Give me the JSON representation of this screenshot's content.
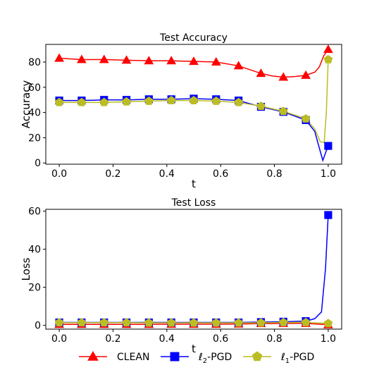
{
  "chart_data": [
    {
      "type": "line",
      "title": "Test Accuracy",
      "xlabel": "t",
      "ylabel": "Accuracy",
      "xlim": [
        -0.05,
        1.05
      ],
      "ylim": [
        -1,
        94
      ],
      "xticks": [
        0.0,
        0.2,
        0.4,
        0.6,
        0.8,
        1.0
      ],
      "xtick_labels": [
        "0.0",
        "0.2",
        "0.4",
        "0.6",
        "0.8",
        "1.0"
      ],
      "yticks": [
        0,
        20,
        40,
        60,
        80
      ],
      "ytick_labels": [
        "0",
        "20",
        "40",
        "60",
        "80"
      ],
      "grid": false,
      "series": [
        {
          "name": "CLEAN",
          "color": "#ff0000",
          "marker": "triangle",
          "line_x": [
            0,
            0.0833,
            0.1667,
            0.25,
            0.3333,
            0.4167,
            0.5,
            0.5833,
            0.6667,
            0.75,
            0.7917,
            0.8333,
            0.875,
            0.9167,
            0.95,
            0.9667,
            0.9833,
            1.0
          ],
          "line_y": [
            83,
            82,
            82,
            81.5,
            81,
            81,
            80.5,
            80,
            77,
            71,
            69,
            68,
            68.5,
            69.5,
            72,
            76,
            85,
            90
          ],
          "marker_x": [
            0,
            0.0833,
            0.1667,
            0.25,
            0.3333,
            0.4167,
            0.5,
            0.5833,
            0.6667,
            0.75,
            0.8333,
            0.9167,
            1.0
          ],
          "marker_y": [
            83,
            82,
            82,
            81.5,
            81,
            81,
            80.5,
            80,
            77,
            71,
            68,
            69.5,
            90
          ]
        },
        {
          "name": "ℓ2-PGD",
          "color": "#0000ff",
          "marker": "square",
          "line_x": [
            0,
            0.0833,
            0.1667,
            0.25,
            0.3333,
            0.4167,
            0.5,
            0.5833,
            0.6667,
            0.75,
            0.8333,
            0.9167,
            0.95,
            0.9667,
            0.98,
            0.99,
            1.0
          ],
          "line_y": [
            49.5,
            49.5,
            50,
            50,
            50.5,
            50.5,
            51,
            50.5,
            49.5,
            44.5,
            40.5,
            34,
            25,
            12,
            2,
            8,
            13.5
          ],
          "marker_x": [
            0,
            0.0833,
            0.1667,
            0.25,
            0.3333,
            0.4167,
            0.5,
            0.5833,
            0.6667,
            0.75,
            0.8333,
            0.9167,
            1.0
          ],
          "marker_y": [
            49.5,
            49.5,
            50,
            50,
            50.5,
            50.5,
            51,
            50.5,
            49.5,
            44.5,
            40.5,
            34,
            13.5
          ]
        },
        {
          "name": "ℓ1-PGD",
          "color": "#bcbd22",
          "marker": "pentagon",
          "line_x": [
            0,
            0.0833,
            0.1667,
            0.25,
            0.3333,
            0.4167,
            0.5,
            0.5833,
            0.6667,
            0.75,
            0.8333,
            0.9167,
            0.95,
            0.97,
            0.985,
            0.993,
            1.0
          ],
          "line_y": [
            48,
            48,
            48,
            48.5,
            49,
            49.5,
            49.5,
            49,
            48,
            45,
            41,
            35,
            27,
            17,
            16,
            40,
            82
          ],
          "marker_x": [
            0,
            0.0833,
            0.1667,
            0.25,
            0.3333,
            0.4167,
            0.5,
            0.5833,
            0.6667,
            0.75,
            0.8333,
            0.9167,
            1.0
          ],
          "marker_y": [
            48,
            48,
            48,
            48.5,
            49,
            49.5,
            49.5,
            49,
            48,
            45,
            41,
            35,
            82
          ]
        }
      ]
    },
    {
      "type": "line",
      "title": "Test Loss",
      "xlabel": "t",
      "ylabel": "Loss",
      "xlim": [
        -0.05,
        1.05
      ],
      "ylim": [
        -2,
        61
      ],
      "xticks": [
        0.0,
        0.2,
        0.4,
        0.6,
        0.8,
        1.0
      ],
      "xtick_labels": [
        "0.0",
        "0.2",
        "0.4",
        "0.6",
        "0.8",
        "1.0"
      ],
      "yticks": [
        0,
        20,
        40,
        60
      ],
      "ytick_labels": [
        "0",
        "20",
        "40",
        "60"
      ],
      "grid": false,
      "series": [
        {
          "name": "CLEAN",
          "color": "#ff0000",
          "marker": "triangle",
          "line_x": [
            0,
            0.0833,
            0.1667,
            0.25,
            0.3333,
            0.4167,
            0.5,
            0.5833,
            0.6667,
            0.75,
            0.8333,
            0.9167,
            1.0
          ],
          "line_y": [
            0.5,
            0.5,
            0.5,
            0.5,
            0.5,
            0.6,
            0.6,
            0.6,
            0.7,
            0.9,
            1.0,
            1.0,
            0.3
          ],
          "marker_x": [
            0,
            0.0833,
            0.1667,
            0.25,
            0.3333,
            0.4167,
            0.5,
            0.5833,
            0.6667,
            0.75,
            0.8333,
            0.9167,
            1.0
          ],
          "marker_y": [
            0.5,
            0.5,
            0.5,
            0.5,
            0.5,
            0.6,
            0.6,
            0.6,
            0.7,
            0.9,
            1.0,
            1.0,
            0.3
          ]
        },
        {
          "name": "ℓ2-PGD",
          "color": "#0000ff",
          "marker": "square",
          "line_x": [
            0,
            0.0833,
            0.1667,
            0.25,
            0.3333,
            0.4167,
            0.5,
            0.5833,
            0.6667,
            0.75,
            0.8333,
            0.9167,
            0.95,
            0.975,
            0.99,
            1.0
          ],
          "line_y": [
            1.5,
            1.5,
            1.5,
            1.5,
            1.5,
            1.5,
            1.5,
            1.5,
            1.5,
            1.7,
            1.9,
            2.2,
            3.5,
            7,
            30,
            58
          ],
          "marker_x": [
            0,
            0.0833,
            0.1667,
            0.25,
            0.3333,
            0.4167,
            0.5,
            0.5833,
            0.6667,
            0.75,
            0.8333,
            0.9167,
            1.0
          ],
          "marker_y": [
            1.5,
            1.5,
            1.5,
            1.5,
            1.5,
            1.5,
            1.5,
            1.5,
            1.5,
            1.7,
            1.9,
            2.2,
            58
          ]
        },
        {
          "name": "ℓ1-PGD",
          "color": "#bcbd22",
          "marker": "pentagon",
          "line_x": [
            0,
            0.0833,
            0.1667,
            0.25,
            0.3333,
            0.4167,
            0.5,
            0.5833,
            0.6667,
            0.75,
            0.8333,
            0.9167,
            1.0
          ],
          "line_y": [
            1.4,
            1.4,
            1.4,
            1.4,
            1.3,
            1.3,
            1.3,
            1.3,
            1.3,
            1.3,
            1.5,
            1.5,
            1.0
          ],
          "marker_x": [
            0,
            0.0833,
            0.1667,
            0.25,
            0.3333,
            0.4167,
            0.5,
            0.5833,
            0.6667,
            0.75,
            0.8333,
            0.9167,
            1.0
          ],
          "marker_y": [
            1.4,
            1.4,
            1.4,
            1.4,
            1.3,
            1.3,
            1.3,
            1.3,
            1.3,
            1.3,
            1.5,
            1.5,
            1.0
          ]
        }
      ]
    }
  ],
  "legend": {
    "placement": "bottom-center",
    "entries": [
      {
        "series": "CLEAN",
        "prefix": "",
        "sub": "",
        "suffix": "CLEAN",
        "color": "#ff0000",
        "marker": "triangle"
      },
      {
        "series": "ℓ2-PGD",
        "prefix": "ℓ",
        "sub": "2",
        "suffix": "-PGD",
        "color": "#0000ff",
        "marker": "square"
      },
      {
        "series": "ℓ1-PGD",
        "prefix": "ℓ",
        "sub": "1",
        "suffix": "-PGD",
        "color": "#bcbd22",
        "marker": "pentagon"
      }
    ]
  }
}
